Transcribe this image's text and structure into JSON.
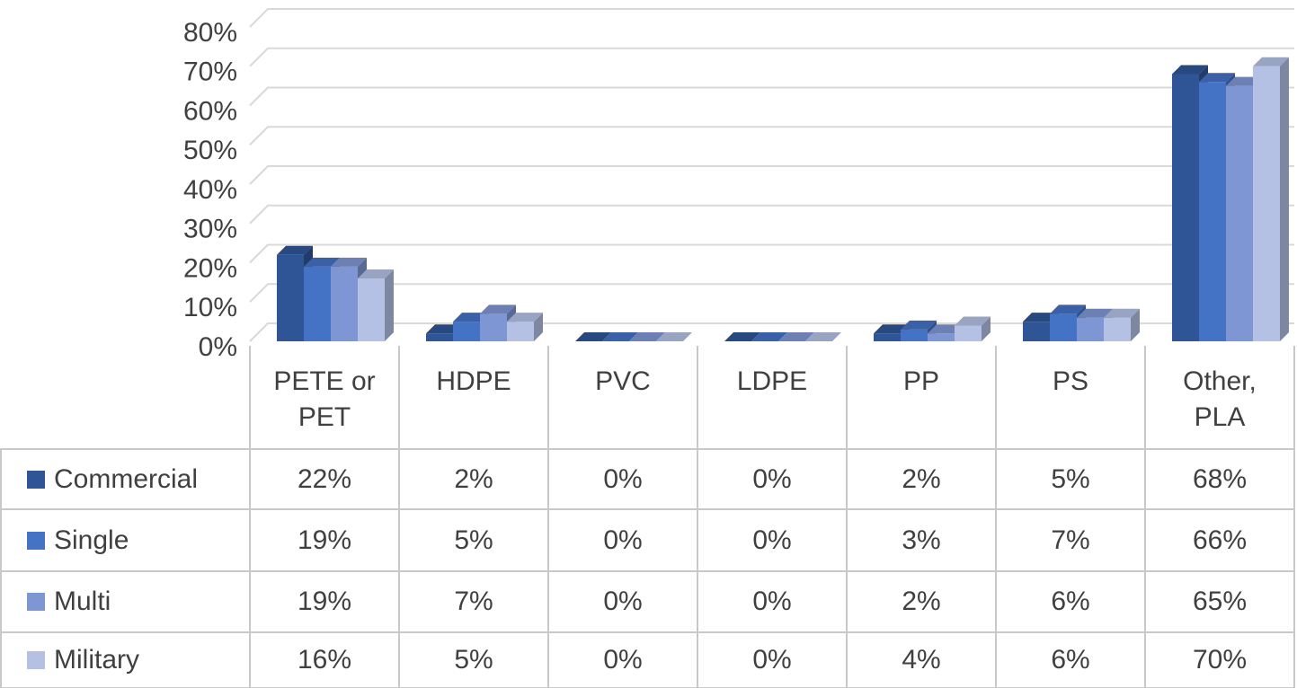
{
  "chart_data": {
    "type": "bar3d",
    "categories": [
      "PETE or PET",
      "HDPE",
      "PVC",
      "LDPE",
      "PP",
      "PS",
      "Other, PLA"
    ],
    "ylim": [
      0,
      80
    ],
    "yticks": [
      {
        "value": 0,
        "label": "0%"
      },
      {
        "value": 10,
        "label": "10%"
      },
      {
        "value": 20,
        "label": "20%"
      },
      {
        "value": 30,
        "label": "30%"
      },
      {
        "value": 40,
        "label": "40%"
      },
      {
        "value": 50,
        "label": "50%"
      },
      {
        "value": 60,
        "label": "60%"
      },
      {
        "value": 70,
        "label": "70%"
      },
      {
        "value": 80,
        "label": "80%"
      }
    ],
    "grid": true,
    "series": [
      {
        "name": "Commercial",
        "color": "#2f5597",
        "values": [
          22,
          2,
          0,
          0,
          2,
          5,
          68
        ],
        "value_labels": [
          "22%",
          "2%",
          "0%",
          "0%",
          "2%",
          "5%",
          "68%"
        ]
      },
      {
        "name": "Single",
        "color": "#4472c4",
        "values": [
          19,
          5,
          0,
          0,
          3,
          7,
          66
        ],
        "value_labels": [
          "19%",
          "5%",
          "0%",
          "0%",
          "3%",
          "7%",
          "66%"
        ]
      },
      {
        "name": "Multi",
        "color": "#7f96d4",
        "values": [
          19,
          7,
          0,
          0,
          2,
          6,
          65
        ],
        "value_labels": [
          "19%",
          "7%",
          "0%",
          "0%",
          "2%",
          "6%",
          "65%"
        ]
      },
      {
        "name": "Military",
        "color": "#b4c1e4",
        "values": [
          16,
          5,
          0,
          0,
          4,
          6,
          70
        ],
        "value_labels": [
          "16%",
          "5%",
          "0%",
          "0%",
          "4%",
          "6%",
          "70%"
        ]
      }
    ]
  }
}
